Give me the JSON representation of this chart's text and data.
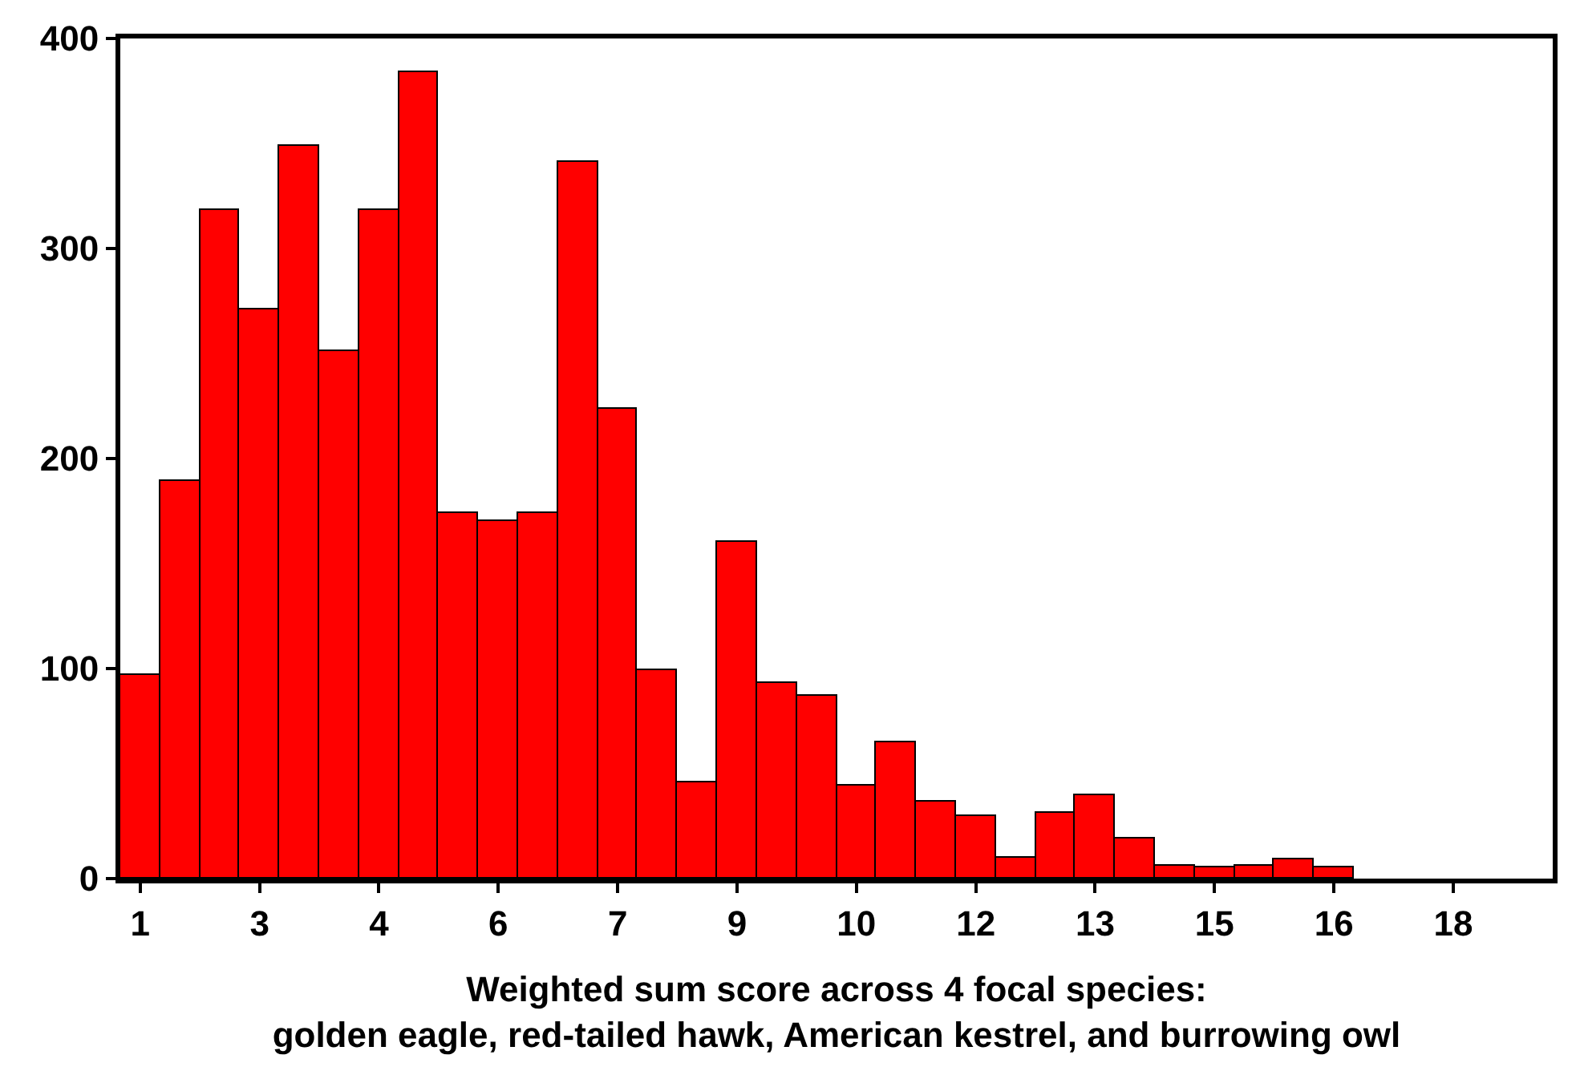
{
  "chart_data": {
    "type": "histogram",
    "xlabel": "Weighted sum score across 4 focal species:\ngolden eagle, red-tailed hawk, American kestrel, and burrowing owl",
    "bins": [
      0.75,
      1.25,
      1.75,
      2.25,
      2.75,
      3.25,
      3.75,
      4.25,
      4.75,
      5.25,
      5.75,
      6.25,
      6.75,
      7.25,
      7.75,
      8.25,
      8.75,
      9.25,
      9.75,
      10.25,
      10.75,
      11.25,
      11.75,
      12.25,
      12.75,
      13.25,
      13.75,
      14.25,
      14.75,
      15.25,
      15.75,
      16.25,
      16.75,
      17.25,
      17.75,
      18.25,
      18.75
    ],
    "values": [
      97,
      189,
      318,
      271,
      349,
      251,
      318,
      384,
      174,
      170,
      174,
      341,
      224,
      99,
      46,
      160,
      93,
      87,
      44,
      65,
      37,
      30,
      10,
      31,
      40,
      19,
      6,
      5,
      6,
      9,
      5,
      0,
      null,
      null,
      0,
      null
    ],
    "color": "#ff0000",
    "xlim": [
      0.75,
      18.75
    ],
    "xticks": [
      1,
      {
        "value": 2.5,
        "label": "3"
      },
      4,
      {
        "value": 5.5,
        "label": "6"
      },
      7,
      {
        "value": 8.5,
        "label": "9"
      },
      10,
      {
        "value": 11.5,
        "label": "12"
      },
      13,
      {
        "value": 14.5,
        "label": "15"
      },
      16,
      {
        "value": 17.5,
        "label": "18"
      }
    ],
    "ylim": [
      0,
      400
    ],
    "yticks": [
      0,
      100,
      200,
      300,
      400
    ]
  }
}
